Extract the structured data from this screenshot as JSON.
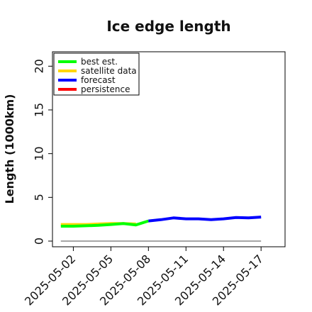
{
  "chart_data": {
    "type": "line",
    "title": "Ice edge length",
    "xlabel": "",
    "ylabel": "Length (1000km)",
    "ylim": [
      0,
      21
    ],
    "xlim": [
      "2025-04-30T08:00",
      "2025-05-18T22:00"
    ],
    "yticks": [
      0,
      5,
      10,
      15,
      20
    ],
    "xticks": [
      "2025-05-02",
      "2025-05-05",
      "2025-05-08",
      "2025-05-11",
      "2025-05-14",
      "2025-05-17"
    ],
    "highlight_xtick": {
      "label": "2025-05-08",
      "color": "#228B22"
    },
    "grid": false,
    "legend_position": "top-left",
    "series": [
      {
        "name": "best est.",
        "color": "#00ff00",
        "x": [
          "2025-05-01",
          "2025-05-02",
          "2025-05-03",
          "2025-05-04",
          "2025-05-05",
          "2025-05-06",
          "2025-05-07",
          "2025-05-08"
        ],
        "y": [
          1.7,
          1.7,
          1.75,
          1.8,
          1.9,
          2.0,
          1.85,
          2.3
        ]
      },
      {
        "name": "satellite data",
        "color": "#ffd700",
        "x": [
          "2025-05-01",
          "2025-05-02",
          "2025-05-03",
          "2025-05-04",
          "2025-05-05",
          "2025-05-06",
          "2025-05-07"
        ],
        "y": [
          1.9,
          1.9,
          1.9,
          1.95,
          2.0,
          2.0,
          1.95
        ]
      },
      {
        "name": "forecast",
        "color": "#0000ff",
        "x": [
          "2025-05-08",
          "2025-05-09",
          "2025-05-10",
          "2025-05-11",
          "2025-05-12",
          "2025-05-13",
          "2025-05-14",
          "2025-05-15",
          "2025-05-16",
          "2025-05-17"
        ],
        "y": [
          2.3,
          2.45,
          2.65,
          2.55,
          2.55,
          2.45,
          2.55,
          2.7,
          2.65,
          2.75
        ]
      },
      {
        "name": "persistence",
        "color": "#ff0000",
        "x": [],
        "y": []
      }
    ],
    "reference_line": {
      "y": 0,
      "color": "#888888",
      "x_from": "2025-05-01",
      "x_to": "2025-05-17"
    }
  }
}
